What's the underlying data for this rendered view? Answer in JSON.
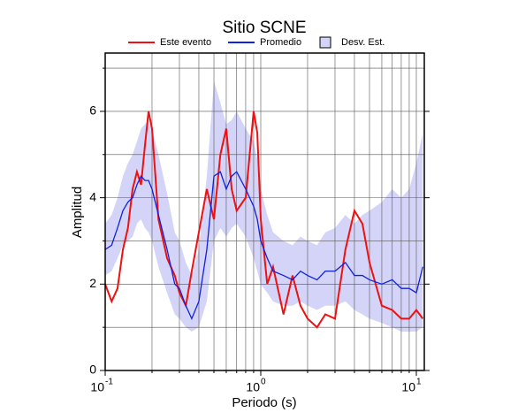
{
  "chart_data": {
    "type": "line",
    "title": "Sitio SCNE",
    "xlabel": "Periodo (s)",
    "ylabel": "Amplitud",
    "xscale": "log",
    "grid": true,
    "xlim": [
      0.1,
      11.25
    ],
    "ylim": [
      0,
      7.35
    ],
    "xticks": [
      {
        "value": 0.1,
        "label": "10",
        "exponent": "-1"
      },
      {
        "value": 1,
        "label": "10",
        "exponent": "0"
      },
      {
        "value": 10,
        "label": "10",
        "exponent": "1"
      }
    ],
    "x_minor_ticks": [
      0.2,
      0.3,
      0.4,
      0.5,
      0.6,
      0.7,
      0.8,
      0.9,
      2,
      3,
      4,
      5,
      6,
      7,
      8,
      9
    ],
    "yticks": [
      0,
      2,
      4,
      6
    ],
    "y_minor_ticks": [
      1,
      3,
      5,
      7
    ],
    "x": [
      0.1,
      0.11,
      0.12,
      0.13,
      0.14,
      0.15,
      0.16,
      0.17,
      0.18,
      0.19,
      0.2,
      0.22,
      0.25,
      0.28,
      0.3,
      0.33,
      0.36,
      0.4,
      0.45,
      0.5,
      0.55,
      0.6,
      0.65,
      0.7,
      0.8,
      0.9,
      0.95,
      1.0,
      1.1,
      1.2,
      1.4,
      1.6,
      1.8,
      2.0,
      2.3,
      2.6,
      3.0,
      3.5,
      4.0,
      4.5,
      5.0,
      6.0,
      7.0,
      8.0,
      9.0,
      10.0,
      11.0
    ],
    "series": [
      {
        "name": "Este evento",
        "color": "#ee1111",
        "values": [
          2.0,
          1.6,
          1.9,
          2.8,
          3.3,
          4.2,
          4.6,
          4.3,
          5.2,
          6.0,
          5.6,
          3.5,
          2.6,
          2.2,
          1.8,
          1.5,
          2.3,
          3.2,
          4.2,
          3.5,
          5.0,
          5.6,
          4.2,
          3.7,
          4.0,
          6.0,
          5.5,
          3.5,
          2.0,
          2.4,
          1.3,
          2.2,
          1.5,
          1.2,
          1.0,
          1.3,
          1.2,
          2.8,
          3.7,
          3.4,
          2.5,
          1.5,
          1.4,
          1.2,
          1.2,
          1.4,
          1.2
        ]
      },
      {
        "name": "Promedio",
        "color": "#1122dd",
        "values": [
          2.8,
          2.9,
          3.3,
          3.7,
          3.9,
          4.0,
          4.3,
          4.5,
          4.4,
          4.4,
          4.2,
          3.6,
          2.8,
          2.0,
          1.9,
          1.5,
          1.2,
          1.6,
          2.8,
          4.5,
          4.6,
          4.2,
          4.5,
          4.6,
          4.2,
          3.8,
          3.5,
          3.0,
          2.6,
          2.3,
          2.2,
          2.1,
          2.3,
          2.2,
          2.1,
          2.3,
          2.3,
          2.5,
          2.2,
          2.2,
          2.1,
          2.0,
          2.1,
          1.9,
          1.9,
          1.8,
          2.4
        ]
      },
      {
        "name": "Desv. Est.",
        "color": "#d4d4f8",
        "type": "band",
        "upper": [
          3.4,
          3.6,
          4.0,
          4.5,
          4.8,
          5.0,
          5.3,
          5.6,
          5.7,
          5.8,
          5.6,
          5.0,
          4.1,
          3.2,
          3.0,
          2.5,
          2.2,
          2.8,
          4.5,
          6.7,
          6.2,
          5.7,
          5.8,
          6.0,
          5.6,
          5.3,
          4.9,
          4.2,
          3.6,
          3.2,
          3.0,
          2.9,
          3.1,
          3.0,
          2.9,
          3.2,
          3.3,
          3.6,
          3.4,
          3.6,
          3.7,
          3.9,
          4.2,
          4.0,
          4.2,
          4.8,
          5.5
        ],
        "lower": [
          2.2,
          2.3,
          2.6,
          2.9,
          3.0,
          3.1,
          3.4,
          3.5,
          3.3,
          3.2,
          3.0,
          2.4,
          1.8,
          1.3,
          1.2,
          1.0,
          0.9,
          1.0,
          1.6,
          3.0,
          3.3,
          3.1,
          3.3,
          3.4,
          3.1,
          2.6,
          2.3,
          2.0,
          1.8,
          1.6,
          1.5,
          1.5,
          1.6,
          1.5,
          1.4,
          1.5,
          1.5,
          1.6,
          1.4,
          1.3,
          1.2,
          1.1,
          1.0,
          0.9,
          0.9,
          0.9,
          1.0
        ]
      }
    ]
  }
}
